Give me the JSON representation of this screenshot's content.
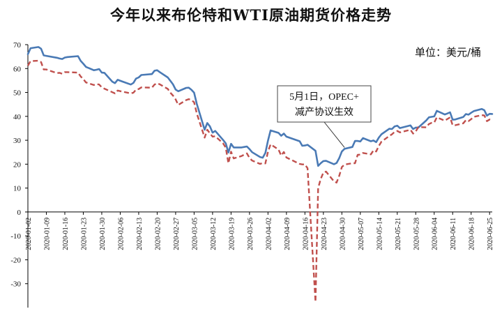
{
  "chart_data": {
    "type": "line",
    "title": "今年以来布伦特和WTI原油期货价格走势",
    "unit": "单位：美元/桶",
    "annotation": [
      "5月1日，OPEC+",
      "减产协议生效"
    ],
    "annotation_date": "2020-05-01",
    "ylim": [
      -40,
      70
    ],
    "yticks": [
      -30,
      -20,
      -10,
      0,
      10,
      20,
      30,
      40,
      50,
      60,
      70
    ],
    "xlim": [
      "2020-01-02",
      "2020-06-26"
    ],
    "xticks": [
      "2020-01-02",
      "2020-01-09",
      "2020-01-16",
      "2020-01-23",
      "2020-01-30",
      "2020-02-06",
      "2020-02-13",
      "2020-02-20",
      "2020-02-27",
      "2020-03-05",
      "2020-03-12",
      "2020-03-19",
      "2020-03-26",
      "2020-04-02",
      "2020-04-09",
      "2020-04-16",
      "2020-04-23",
      "2020-04-30",
      "2020-05-07",
      "2020-05-14",
      "2020-05-21",
      "2020-05-28",
      "2020-06-04",
      "2020-06-11",
      "2020-06-18",
      "2020-06-25"
    ],
    "grid": false,
    "legend": "none",
    "series": [
      {
        "color": "#4a7ab5",
        "style": "solid",
        "points": [
          [
            "2020-01-02",
            66
          ],
          [
            "2020-01-03",
            68.5
          ],
          [
            "2020-01-06",
            69
          ],
          [
            "2020-01-07",
            68.3
          ],
          [
            "2020-01-08",
            65.5
          ],
          [
            "2020-01-09",
            65.3
          ],
          [
            "2020-01-13",
            64.5
          ],
          [
            "2020-01-14",
            64.2
          ],
          [
            "2020-01-15",
            64.0
          ],
          [
            "2020-01-16",
            64.6
          ],
          [
            "2020-01-17",
            64.8
          ],
          [
            "2020-01-21",
            65.2
          ],
          [
            "2020-01-22",
            63.2
          ],
          [
            "2020-01-23",
            62.0
          ],
          [
            "2020-01-24",
            60.7
          ],
          [
            "2020-01-27",
            59.3
          ],
          [
            "2020-01-28",
            59.5
          ],
          [
            "2020-01-29",
            59.8
          ],
          [
            "2020-01-30",
            58.3
          ],
          [
            "2020-01-31",
            58.2
          ],
          [
            "2020-02-03",
            54.5
          ],
          [
            "2020-02-04",
            53.9
          ],
          [
            "2020-02-05",
            55.3
          ],
          [
            "2020-02-07",
            54.5
          ],
          [
            "2020-02-10",
            53.3
          ],
          [
            "2020-02-11",
            54.0
          ],
          [
            "2020-02-12",
            55.8
          ],
          [
            "2020-02-13",
            56.3
          ],
          [
            "2020-02-14",
            57.3
          ],
          [
            "2020-02-18",
            57.7
          ],
          [
            "2020-02-19",
            59.1
          ],
          [
            "2020-02-20",
            59.3
          ],
          [
            "2020-02-21",
            58.5
          ],
          [
            "2020-02-24",
            56.3
          ],
          [
            "2020-02-25",
            54.9
          ],
          [
            "2020-02-26",
            53.4
          ],
          [
            "2020-02-27",
            51.2
          ],
          [
            "2020-02-28",
            50.5
          ],
          [
            "2020-03-02",
            51.9
          ],
          [
            "2020-03-03",
            52.0
          ],
          [
            "2020-03-04",
            51.1
          ],
          [
            "2020-03-05",
            49.9
          ],
          [
            "2020-03-06",
            45.3
          ],
          [
            "2020-03-09",
            34.4
          ],
          [
            "2020-03-10",
            37.2
          ],
          [
            "2020-03-11",
            35.8
          ],
          [
            "2020-03-12",
            33.2
          ],
          [
            "2020-03-13",
            33.9
          ],
          [
            "2020-03-16",
            30.1
          ],
          [
            "2020-03-17",
            28.7
          ],
          [
            "2020-03-18",
            24.9
          ],
          [
            "2020-03-19",
            28.5
          ],
          [
            "2020-03-20",
            27.0
          ],
          [
            "2020-03-23",
            27.0
          ],
          [
            "2020-03-24",
            27.2
          ],
          [
            "2020-03-25",
            27.4
          ],
          [
            "2020-03-26",
            26.3
          ],
          [
            "2020-03-27",
            25.0
          ],
          [
            "2020-03-30",
            23.0
          ],
          [
            "2020-03-31",
            22.7
          ],
          [
            "2020-04-01",
            24.7
          ],
          [
            "2020-04-02",
            29.9
          ],
          [
            "2020-04-03",
            34.1
          ],
          [
            "2020-04-06",
            33.1
          ],
          [
            "2020-04-07",
            31.9
          ],
          [
            "2020-04-08",
            32.8
          ],
          [
            "2020-04-09",
            31.5
          ],
          [
            "2020-04-14",
            29.6
          ],
          [
            "2020-04-15",
            27.7
          ],
          [
            "2020-04-16",
            27.8
          ],
          [
            "2020-04-17",
            28.1
          ],
          [
            "2020-04-20",
            25.6
          ],
          [
            "2020-04-21",
            19.3
          ],
          [
            "2020-04-22",
            20.4
          ],
          [
            "2020-04-23",
            21.3
          ],
          [
            "2020-04-24",
            21.4
          ],
          [
            "2020-04-27",
            20.0
          ],
          [
            "2020-04-28",
            20.5
          ],
          [
            "2020-04-29",
            22.5
          ],
          [
            "2020-04-30",
            25.3
          ],
          [
            "2020-05-01",
            26.4
          ],
          [
            "2020-05-04",
            27.2
          ],
          [
            "2020-05-05",
            29.7
          ],
          [
            "2020-05-06",
            29.7
          ],
          [
            "2020-05-07",
            29.5
          ],
          [
            "2020-05-08",
            30.9
          ],
          [
            "2020-05-11",
            29.6
          ],
          [
            "2020-05-12",
            29.9
          ],
          [
            "2020-05-13",
            29.2
          ],
          [
            "2020-05-14",
            31.1
          ],
          [
            "2020-05-15",
            32.5
          ],
          [
            "2020-05-18",
            34.8
          ],
          [
            "2020-05-19",
            34.7
          ],
          [
            "2020-05-20",
            35.8
          ],
          [
            "2020-05-21",
            36.1
          ],
          [
            "2020-05-22",
            35.1
          ],
          [
            "2020-05-26",
            36.2
          ],
          [
            "2020-05-27",
            34.7
          ],
          [
            "2020-05-28",
            35.3
          ],
          [
            "2020-05-29",
            35.3
          ],
          [
            "2020-06-01",
            38.3
          ],
          [
            "2020-06-02",
            39.6
          ],
          [
            "2020-06-03",
            39.8
          ],
          [
            "2020-06-04",
            39.99
          ],
          [
            "2020-06-05",
            42.3
          ],
          [
            "2020-06-08",
            40.8
          ],
          [
            "2020-06-09",
            41.2
          ],
          [
            "2020-06-10",
            41.7
          ],
          [
            "2020-06-11",
            38.6
          ],
          [
            "2020-06-12",
            38.7
          ],
          [
            "2020-06-15",
            39.7
          ],
          [
            "2020-06-16",
            40.96
          ],
          [
            "2020-06-17",
            40.7
          ],
          [
            "2020-06-18",
            41.5
          ],
          [
            "2020-06-19",
            42.2
          ],
          [
            "2020-06-22",
            43.1
          ],
          [
            "2020-06-23",
            42.6
          ],
          [
            "2020-06-24",
            40.3
          ],
          [
            "2020-06-25",
            41.05
          ],
          [
            "2020-06-26",
            41.0
          ]
        ]
      },
      {
        "color": "#c0504d",
        "style": "dashed",
        "points": [
          [
            "2020-01-02",
            61.2
          ],
          [
            "2020-01-03",
            63.1
          ],
          [
            "2020-01-06",
            63.3
          ],
          [
            "2020-01-07",
            62.7
          ],
          [
            "2020-01-08",
            59.6
          ],
          [
            "2020-01-09",
            59.6
          ],
          [
            "2020-01-13",
            58.1
          ],
          [
            "2020-01-14",
            58.2
          ],
          [
            "2020-01-15",
            57.8
          ],
          [
            "2020-01-16",
            58.5
          ],
          [
            "2020-01-17",
            58.5
          ],
          [
            "2020-01-21",
            58.3
          ],
          [
            "2020-01-22",
            56.7
          ],
          [
            "2020-01-23",
            55.6
          ],
          [
            "2020-01-24",
            54.2
          ],
          [
            "2020-01-27",
            53.1
          ],
          [
            "2020-01-28",
            53.5
          ],
          [
            "2020-01-29",
            53.3
          ],
          [
            "2020-01-30",
            52.1
          ],
          [
            "2020-01-31",
            51.6
          ],
          [
            "2020-02-03",
            50.1
          ],
          [
            "2020-02-04",
            49.6
          ],
          [
            "2020-02-05",
            50.8
          ],
          [
            "2020-02-07",
            50.3
          ],
          [
            "2020-02-10",
            49.6
          ],
          [
            "2020-02-11",
            49.9
          ],
          [
            "2020-02-12",
            51.2
          ],
          [
            "2020-02-13",
            51.4
          ],
          [
            "2020-02-14",
            52.1
          ],
          [
            "2020-02-18",
            52.0
          ],
          [
            "2020-02-19",
            53.3
          ],
          [
            "2020-02-20",
            53.8
          ],
          [
            "2020-02-21",
            53.4
          ],
          [
            "2020-02-24",
            51.5
          ],
          [
            "2020-02-25",
            49.9
          ],
          [
            "2020-02-26",
            48.7
          ],
          [
            "2020-02-27",
            47.1
          ],
          [
            "2020-02-28",
            44.8
          ],
          [
            "2020-03-02",
            46.8
          ],
          [
            "2020-03-03",
            47.2
          ],
          [
            "2020-03-04",
            46.8
          ],
          [
            "2020-03-05",
            45.9
          ],
          [
            "2020-03-06",
            41.3
          ],
          [
            "2020-03-09",
            31.1
          ],
          [
            "2020-03-10",
            34.4
          ],
          [
            "2020-03-11",
            32.9
          ],
          [
            "2020-03-12",
            31.5
          ],
          [
            "2020-03-13",
            31.7
          ],
          [
            "2020-03-16",
            28.7
          ],
          [
            "2020-03-17",
            26.9
          ],
          [
            "2020-03-18",
            20.4
          ],
          [
            "2020-03-19",
            25.2
          ],
          [
            "2020-03-20",
            22.4
          ],
          [
            "2020-03-23",
            23.4
          ],
          [
            "2020-03-24",
            24.0
          ],
          [
            "2020-03-25",
            24.5
          ],
          [
            "2020-03-26",
            22.6
          ],
          [
            "2020-03-27",
            21.5
          ],
          [
            "2020-03-30",
            20.1
          ],
          [
            "2020-03-31",
            20.5
          ],
          [
            "2020-04-01",
            20.3
          ],
          [
            "2020-04-02",
            25.3
          ],
          [
            "2020-04-03",
            28.3
          ],
          [
            "2020-04-06",
            26.1
          ],
          [
            "2020-04-07",
            23.6
          ],
          [
            "2020-04-08",
            25.1
          ],
          [
            "2020-04-09",
            22.8
          ],
          [
            "2020-04-14",
            20.1
          ],
          [
            "2020-04-15",
            19.9
          ],
          [
            "2020-04-16",
            19.9
          ],
          [
            "2020-04-17",
            18.3
          ],
          [
            "2020-04-20",
            -37.6
          ],
          [
            "2020-04-21",
            10.0
          ],
          [
            "2020-04-22",
            13.8
          ],
          [
            "2020-04-23",
            16.5
          ],
          [
            "2020-04-24",
            16.9
          ],
          [
            "2020-04-27",
            12.8
          ],
          [
            "2020-04-28",
            12.3
          ],
          [
            "2020-04-29",
            15.1
          ],
          [
            "2020-04-30",
            18.8
          ],
          [
            "2020-05-01",
            19.8
          ],
          [
            "2020-05-04",
            20.4
          ],
          [
            "2020-05-05",
            20.4
          ],
          [
            "2020-05-06",
            23.9
          ],
          [
            "2020-05-07",
            24.0
          ],
          [
            "2020-05-08",
            24.7
          ],
          [
            "2020-05-11",
            24.1
          ],
          [
            "2020-05-12",
            25.8
          ],
          [
            "2020-05-13",
            25.3
          ],
          [
            "2020-05-14",
            27.6
          ],
          [
            "2020-05-15",
            29.4
          ],
          [
            "2020-05-18",
            31.8
          ],
          [
            "2020-05-19",
            32.5
          ],
          [
            "2020-05-20",
            33.5
          ],
          [
            "2020-05-21",
            33.9
          ],
          [
            "2020-05-22",
            33.3
          ],
          [
            "2020-05-26",
            34.4
          ],
          [
            "2020-05-27",
            32.8
          ],
          [
            "2020-05-28",
            33.7
          ],
          [
            "2020-05-29",
            35.5
          ],
          [
            "2020-06-01",
            35.4
          ],
          [
            "2020-06-02",
            36.8
          ],
          [
            "2020-06-03",
            37.3
          ],
          [
            "2020-06-04",
            37.4
          ],
          [
            "2020-06-05",
            39.6
          ],
          [
            "2020-06-08",
            38.2
          ],
          [
            "2020-06-09",
            38.9
          ],
          [
            "2020-06-10",
            39.6
          ],
          [
            "2020-06-11",
            36.3
          ],
          [
            "2020-06-12",
            36.3
          ],
          [
            "2020-06-15",
            37.1
          ],
          [
            "2020-06-16",
            38.4
          ],
          [
            "2020-06-17",
            38.0
          ],
          [
            "2020-06-18",
            38.8
          ],
          [
            "2020-06-19",
            39.8
          ],
          [
            "2020-06-22",
            40.5
          ],
          [
            "2020-06-23",
            40.4
          ],
          [
            "2020-06-24",
            38.0
          ],
          [
            "2020-06-25",
            38.7
          ],
          [
            "2020-06-26",
            38.5
          ]
        ]
      }
    ]
  }
}
